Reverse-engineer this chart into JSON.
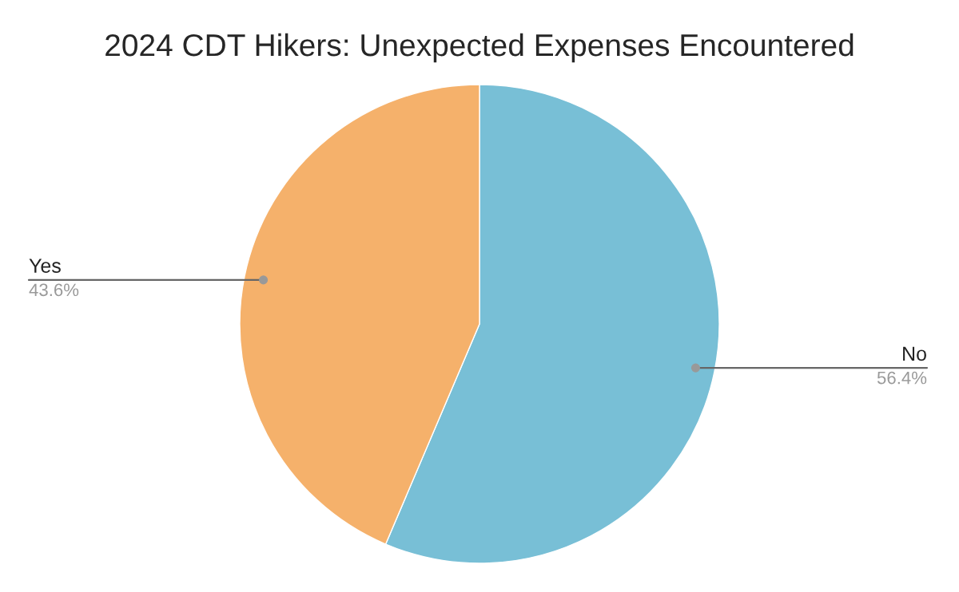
{
  "chart_data": {
    "type": "pie",
    "title": "2024 CDT Hikers: Unexpected Expenses Encountered",
    "categories": [
      "No",
      "Yes"
    ],
    "values": [
      56.4,
      43.6
    ],
    "colors": [
      "#78bfd6",
      "#f5b16b"
    ],
    "value_labels": [
      "56.4%",
      "43.6%"
    ],
    "legend": false
  }
}
